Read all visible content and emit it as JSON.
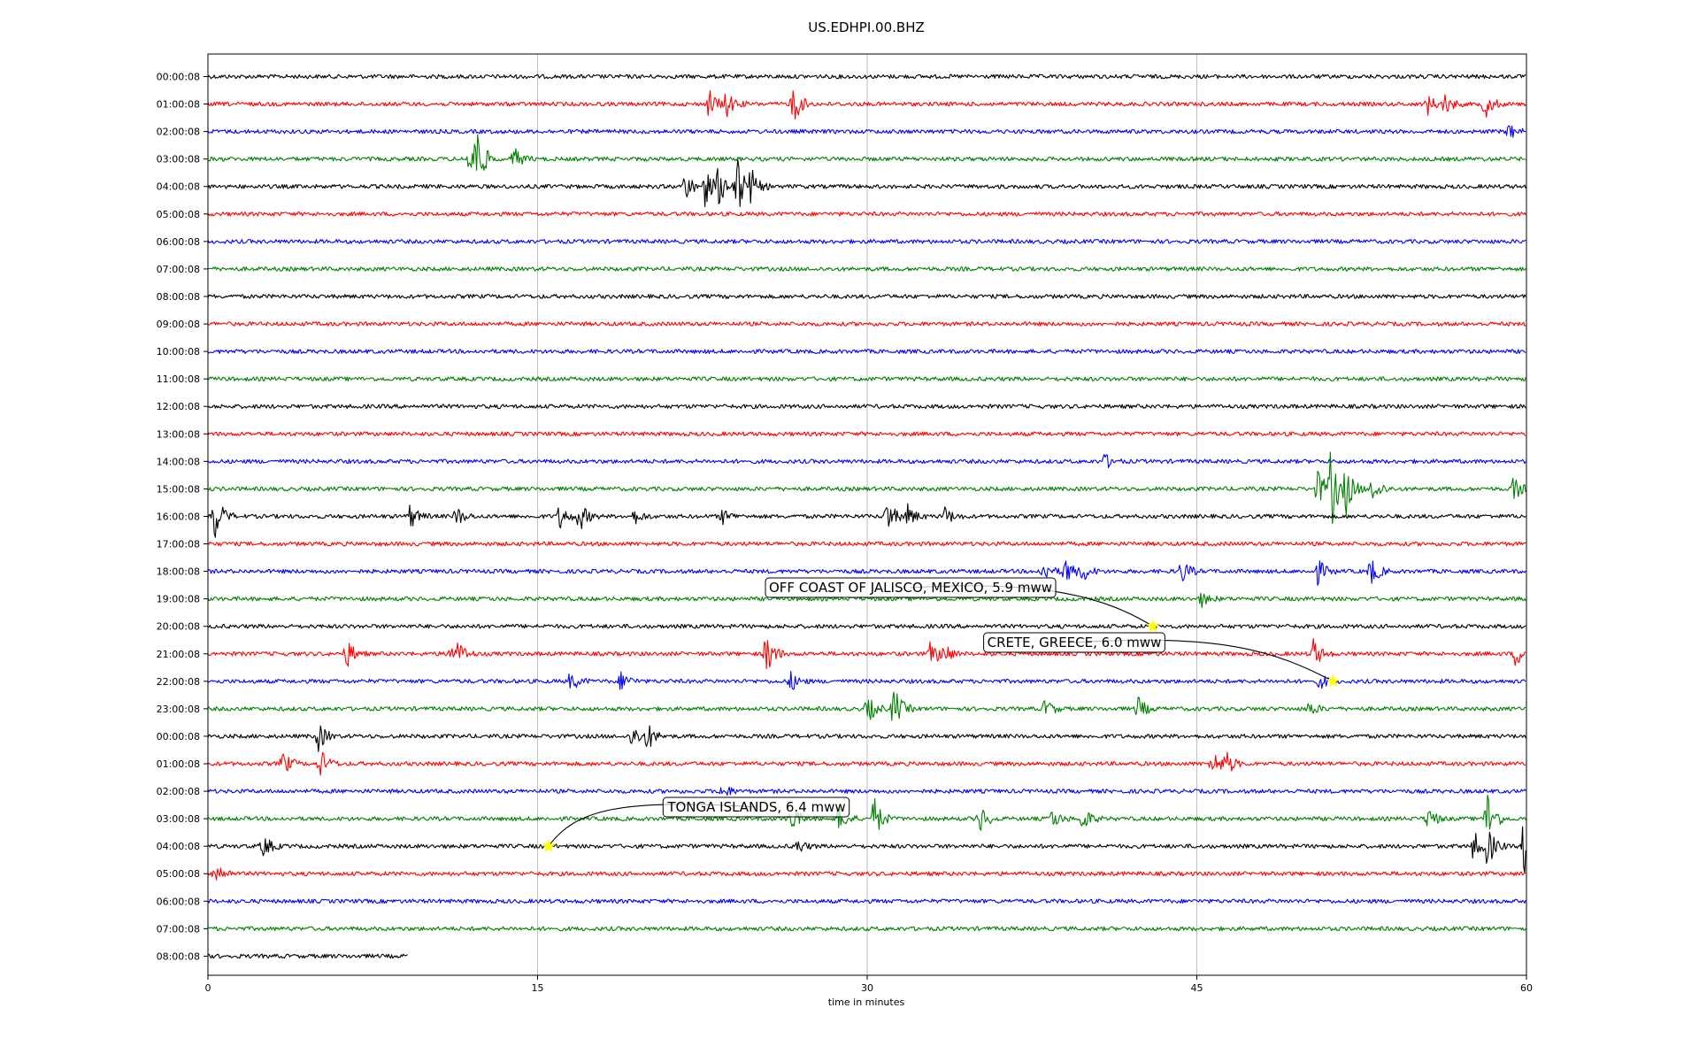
{
  "chart_data": {
    "type": "line",
    "title": "US.EDHPI.00.BHZ",
    "xlabel": "time in minutes",
    "ylabel": "",
    "xlim": [
      0,
      60
    ],
    "x_ticks": [
      0,
      15,
      30,
      45,
      60
    ],
    "grid": "vertical",
    "line_colors": [
      "#000000",
      "#ff0000",
      "#0000ff",
      "#008000"
    ],
    "highlight_color": "#ffff00",
    "row_labels": [
      "00:00:08",
      "01:00:08",
      "02:00:08",
      "03:00:08",
      "04:00:08",
      "05:00:08",
      "06:00:08",
      "07:00:08",
      "08:00:08",
      "09:00:08",
      "10:00:08",
      "11:00:08",
      "12:00:08",
      "13:00:08",
      "14:00:08",
      "15:00:08",
      "16:00:08",
      "17:00:08",
      "18:00:08",
      "19:00:08",
      "20:00:08",
      "21:00:08",
      "22:00:08",
      "23:00:08",
      "00:00:08",
      "01:00:08",
      "02:00:08",
      "03:00:08",
      "04:00:08",
      "05:00:08",
      "06:00:08",
      "07:00:08",
      "08:00:08"
    ],
    "last_row_end_minute": 9.1,
    "bursts": [
      {
        "row": 1,
        "minute": 22.8,
        "amp": 0.6
      },
      {
        "row": 1,
        "minute": 23.6,
        "amp": 0.5
      },
      {
        "row": 1,
        "minute": 26.6,
        "amp": 0.9
      },
      {
        "row": 1,
        "minute": 55.5,
        "amp": 0.4
      },
      {
        "row": 1,
        "minute": 56.3,
        "amp": 0.4
      },
      {
        "row": 1,
        "minute": 58.1,
        "amp": 0.6
      },
      {
        "row": 2,
        "minute": 59.2,
        "amp": 0.3
      },
      {
        "row": 3,
        "minute": 11.9,
        "amp": 0.7
      },
      {
        "row": 3,
        "minute": 12.2,
        "amp": 1.2
      },
      {
        "row": 3,
        "minute": 13.9,
        "amp": 0.5
      },
      {
        "row": 4,
        "minute": 21.7,
        "amp": 0.6
      },
      {
        "row": 4,
        "minute": 22.6,
        "amp": 0.8
      },
      {
        "row": 4,
        "minute": 23.2,
        "amp": 0.7
      },
      {
        "row": 4,
        "minute": 24.0,
        "amp": 1.6
      },
      {
        "row": 4,
        "minute": 24.7,
        "amp": 0.6
      },
      {
        "row": 14,
        "minute": 40.8,
        "amp": 0.3
      },
      {
        "row": 15,
        "minute": 50.5,
        "amp": 0.8
      },
      {
        "row": 15,
        "minute": 51.1,
        "amp": 1.6
      },
      {
        "row": 15,
        "minute": 51.8,
        "amp": 0.9
      },
      {
        "row": 15,
        "minute": 53.0,
        "amp": 0.6
      },
      {
        "row": 15,
        "minute": 59.4,
        "amp": 0.5
      },
      {
        "row": 16,
        "minute": 0.3,
        "amp": 1.0
      },
      {
        "row": 16,
        "minute": 9.2,
        "amp": 0.5
      },
      {
        "row": 16,
        "minute": 11.3,
        "amp": 0.4
      },
      {
        "row": 16,
        "minute": 16.0,
        "amp": 0.5
      },
      {
        "row": 16,
        "minute": 16.9,
        "amp": 0.6
      },
      {
        "row": 16,
        "minute": 19.4,
        "amp": 0.3
      },
      {
        "row": 16,
        "minute": 23.4,
        "amp": 0.3
      },
      {
        "row": 16,
        "minute": 30.9,
        "amp": 0.7
      },
      {
        "row": 16,
        "minute": 31.8,
        "amp": 0.5
      },
      {
        "row": 16,
        "minute": 33.5,
        "amp": 0.4
      },
      {
        "row": 18,
        "minute": 38.0,
        "amp": 0.4
      },
      {
        "row": 18,
        "minute": 39.0,
        "amp": 0.6
      },
      {
        "row": 18,
        "minute": 39.8,
        "amp": 0.4
      },
      {
        "row": 18,
        "minute": 44.3,
        "amp": 0.5
      },
      {
        "row": 18,
        "minute": 50.5,
        "amp": 0.5
      },
      {
        "row": 18,
        "minute": 52.9,
        "amp": 0.6
      },
      {
        "row": 19,
        "minute": 45.2,
        "amp": 0.3
      },
      {
        "row": 21,
        "minute": 6.3,
        "amp": 0.6
      },
      {
        "row": 21,
        "minute": 10.9,
        "amp": 0.4
      },
      {
        "row": 21,
        "minute": 11.4,
        "amp": 0.4
      },
      {
        "row": 21,
        "minute": 25.4,
        "amp": 0.9
      },
      {
        "row": 21,
        "minute": 32.9,
        "amp": 0.6
      },
      {
        "row": 21,
        "minute": 33.5,
        "amp": 0.4
      },
      {
        "row": 21,
        "minute": 50.3,
        "amp": 0.6
      },
      {
        "row": 21,
        "minute": 59.5,
        "amp": 0.5
      },
      {
        "row": 22,
        "minute": 16.5,
        "amp": 0.4
      },
      {
        "row": 22,
        "minute": 18.8,
        "amp": 0.4
      },
      {
        "row": 22,
        "minute": 26.5,
        "amp": 0.4
      },
      {
        "row": 22,
        "minute": 50.6,
        "amp": 0.3
      },
      {
        "row": 23,
        "minute": 30.0,
        "amp": 0.6
      },
      {
        "row": 23,
        "minute": 31.2,
        "amp": 0.9
      },
      {
        "row": 23,
        "minute": 38.1,
        "amp": 0.4
      },
      {
        "row": 23,
        "minute": 42.3,
        "amp": 0.5
      },
      {
        "row": 23,
        "minute": 50.1,
        "amp": 0.3
      },
      {
        "row": 24,
        "minute": 5.0,
        "amp": 0.6
      },
      {
        "row": 24,
        "minute": 19.3,
        "amp": 0.5
      },
      {
        "row": 24,
        "minute": 20.0,
        "amp": 0.5
      },
      {
        "row": 25,
        "minute": 3.4,
        "amp": 0.5
      },
      {
        "row": 25,
        "minute": 5.1,
        "amp": 0.6
      },
      {
        "row": 25,
        "minute": 45.7,
        "amp": 0.6
      },
      {
        "row": 25,
        "minute": 46.3,
        "amp": 0.5
      },
      {
        "row": 26,
        "minute": 23.4,
        "amp": 0.3
      },
      {
        "row": 27,
        "minute": 26.5,
        "amp": 0.6
      },
      {
        "row": 27,
        "minute": 28.7,
        "amp": 0.6
      },
      {
        "row": 27,
        "minute": 30.3,
        "amp": 0.9
      },
      {
        "row": 27,
        "minute": 35.1,
        "amp": 0.6
      },
      {
        "row": 27,
        "minute": 38.4,
        "amp": 0.4
      },
      {
        "row": 27,
        "minute": 39.8,
        "amp": 0.5
      },
      {
        "row": 27,
        "minute": 55.5,
        "amp": 0.5
      },
      {
        "row": 27,
        "minute": 58.2,
        "amp": 1.2
      },
      {
        "row": 28,
        "minute": 2.5,
        "amp": 0.5
      },
      {
        "row": 28,
        "minute": 26.8,
        "amp": 0.3
      },
      {
        "row": 28,
        "minute": 57.6,
        "amp": 0.6
      },
      {
        "row": 28,
        "minute": 58.2,
        "amp": 0.8
      },
      {
        "row": 28,
        "minute": 59.9,
        "amp": 1.5
      },
      {
        "row": 29,
        "minute": 0.3,
        "amp": 0.6
      }
    ],
    "annotations": [
      {
        "label": "OFF COAST OF JALISCO, MEXICO, 5.9 mww",
        "row": 20,
        "minute": 43.0
      },
      {
        "label": "CRETE, GREECE, 6.0 mww",
        "row": 22,
        "minute": 51.2
      },
      {
        "label": "TONGA ISLANDS, 6.4 mww",
        "row": 28,
        "minute": 15.5
      }
    ]
  }
}
